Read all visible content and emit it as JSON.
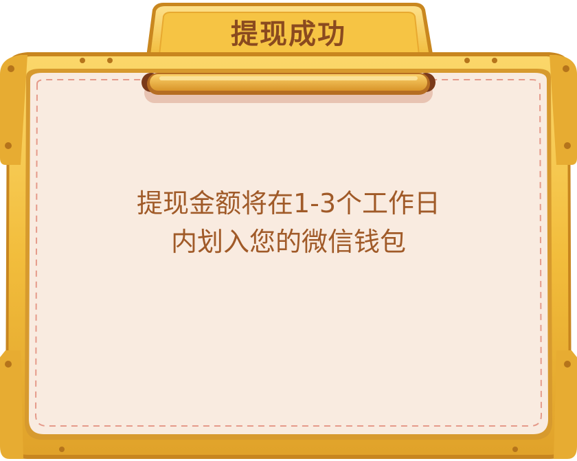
{
  "dialog": {
    "title": "提现成功",
    "message_line1": "提现金额将在1-3个工作日",
    "message_line2": "内划入您的微信钱包"
  },
  "icons": {
    "handle": "handle-icon",
    "rivets": "rivet-icon"
  },
  "colors": {
    "frame_gold": "#f3c24a",
    "frame_gold_dark": "#d99a25",
    "panel_cream": "#f9ebe0",
    "dashed_border": "#e59a8a",
    "title_text": "#8a4a1f",
    "message_text": "#a05a28"
  }
}
